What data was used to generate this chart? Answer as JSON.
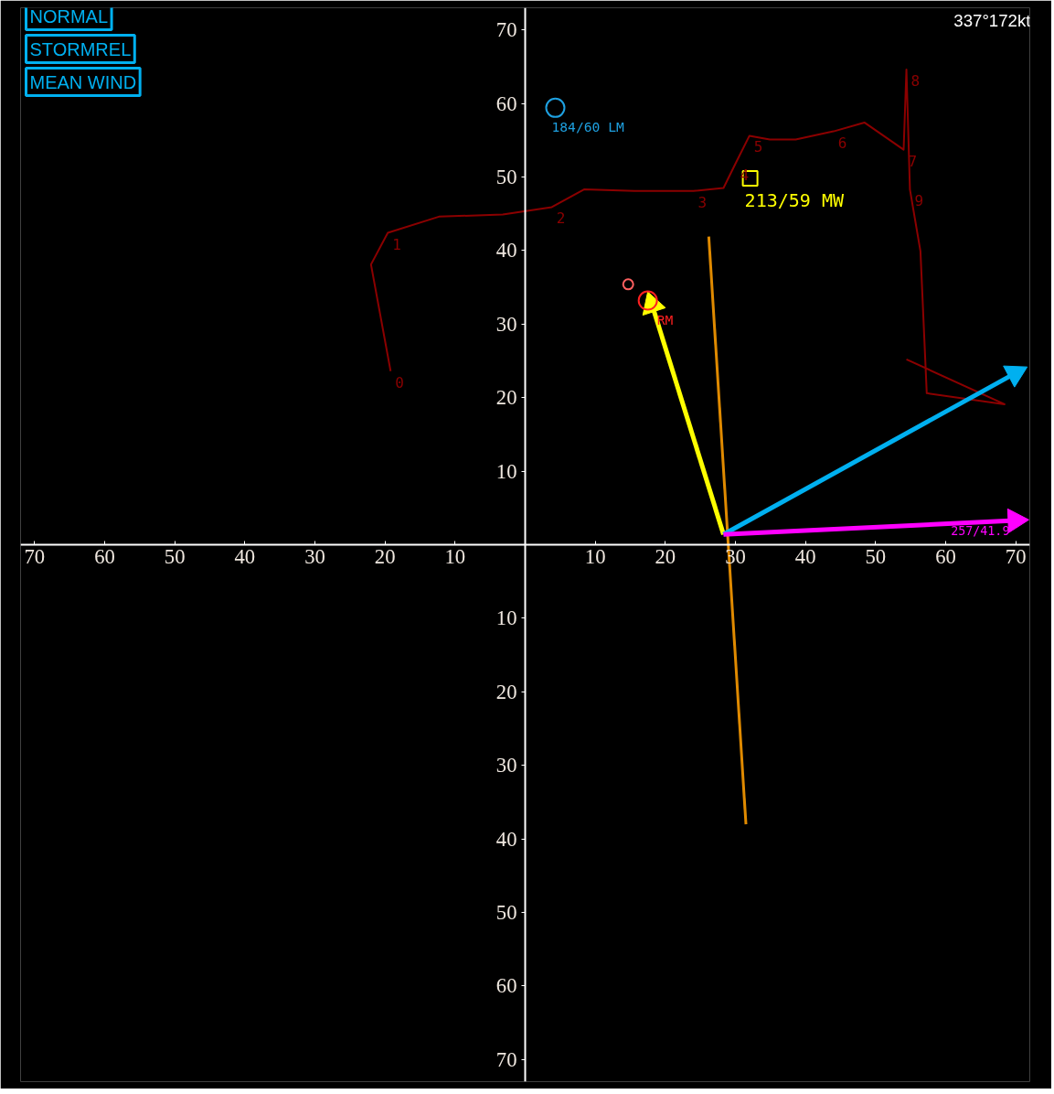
{
  "chart_data": {
    "type": "line",
    "xlim": [
      -72,
      72
    ],
    "ylim": [
      -73,
      73
    ],
    "xticks": [
      {
        "value": -70,
        "label": "70"
      },
      {
        "value": -60,
        "label": "60"
      },
      {
        "value": -50,
        "label": "50"
      },
      {
        "value": -40,
        "label": "40"
      },
      {
        "value": -30,
        "label": "30"
      },
      {
        "value": -20,
        "label": "20"
      },
      {
        "value": -10,
        "label": "10"
      },
      10,
      20,
      30,
      40,
      50,
      60,
      70
    ],
    "yticks": [
      {
        "value": -70,
        "label": "70"
      },
      {
        "value": -60,
        "label": "60"
      },
      {
        "value": -50,
        "label": "50"
      },
      {
        "value": -40,
        "label": "40"
      },
      {
        "value": -30,
        "label": "30"
      },
      {
        "value": -20,
        "label": "20"
      },
      {
        "value": -10,
        "label": "10"
      },
      10,
      20,
      30,
      40,
      50,
      60,
      70
    ],
    "series": [
      {
        "color": "#8b0000",
        "x": [
          -19.2,
          -22.0,
          -19.6,
          -12.3,
          -3.2,
          3.8,
          8.4,
          15.6,
          24.0,
          28.3,
          30.0,
          32.0,
          34.9,
          38.6,
          44.0,
          48.4,
          54.0,
          54.4,
          54.9,
          56.4,
          57.3,
          68.4,
          54.4
        ],
        "values": [
          23.6,
          38.1,
          42.4,
          44.6,
          44.9,
          45.9,
          48.3,
          48.1,
          48.1,
          48.5,
          51.8,
          55.6,
          55.1,
          55.1,
          56.2,
          57.4,
          53.7,
          64.6,
          48.3,
          39.9,
          20.6,
          19.1,
          25.2
        ],
        "marker": "none"
      },
      {
        "color": "#e08a00",
        "x": [
          26.2,
          31.5
        ],
        "values": [
          41.9,
          -38.0
        ]
      },
      {
        "color": "#ffff00",
        "marker": "triangle",
        "x": [
          28.3,
          18.1
        ],
        "values": [
          1.4,
          32.6
        ]
      },
      {
        "color": "#00b0f0",
        "marker": "triangle",
        "x": [
          28.3,
          69.9
        ],
        "values": [
          1.4,
          23.3
        ]
      },
      {
        "color": "#ff00ff",
        "marker": "triangle",
        "x": [
          28.3,
          69.9
        ],
        "values": [
          1.4,
          3.3
        ],
        "value_labels": [
          null,
          "257/41.9"
        ]
      },
      {
        "type": "scatter",
        "color": "#1ea0e0",
        "marker": "circle",
        "x": [
          4.3
        ],
        "values": [
          59.4
        ],
        "value_labels": [
          "184/60 LM"
        ]
      },
      {
        "type": "scatter",
        "color": "#ff2020",
        "marker": "circle",
        "x": [
          17.5
        ],
        "values": [
          33.2
        ],
        "value_labels": [
          "RM"
        ]
      },
      {
        "type": "scatter",
        "color": "#ff6060",
        "marker": "circle",
        "x": [
          14.7
        ],
        "values": [
          35.4
        ]
      },
      {
        "type": "scatter",
        "color": "#ffff00",
        "marker": "square",
        "x": [
          32.1
        ],
        "values": [
          49.8
        ],
        "value_labels": [
          "213/59 MW"
        ]
      }
    ],
    "annotations": [
      {
        "text": "0",
        "x": -19.2,
        "y": 23.6
      },
      {
        "text": "1",
        "x": -19.6,
        "y": 42.4
      },
      {
        "text": "2",
        "x": 3.8,
        "y": 45.9
      },
      {
        "text": "3",
        "x": 24.0,
        "y": 48.1
      },
      {
        "text": "4",
        "x": 30.0,
        "y": 51.8
      },
      {
        "text": "5",
        "x": 32.0,
        "y": 55.6
      },
      {
        "text": "6",
        "x": 44.0,
        "y": 56.2
      },
      {
        "text": "7",
        "x": 54.0,
        "y": 53.7
      },
      {
        "text": "8",
        "x": 54.4,
        "y": 64.6
      },
      {
        "text": "9",
        "x": 54.9,
        "y": 48.3
      },
      "NORMAL",
      "STORMREL",
      "MEAN WIND",
      "337°172kt"
    ]
  }
}
